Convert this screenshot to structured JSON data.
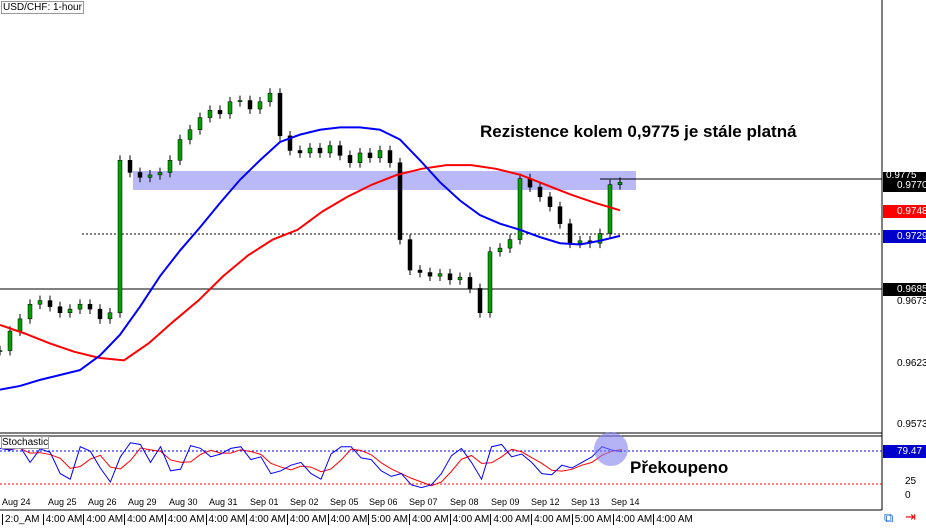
{
  "title": "USD/CHF: 1-hour",
  "annotation_resistance": "Rezistence kolem 0,9775 je stále platná",
  "annotation_overbought": "Překoupeno",
  "stoch_label": "Stochastic",
  "colors": {
    "ma_fast": "#0000ff",
    "ma_slow": "#ff0000",
    "zone": "#8080f0",
    "candle_up": "#00a000",
    "candle_down": "#000000"
  },
  "price_tags": [
    {
      "text": "0.9775",
      "bg": "#000000",
      "fg": "#ffffff"
    },
    {
      "text": "0.9770",
      "bg": "#000000",
      "fg": "#ffffff"
    },
    {
      "text": "0.9748",
      "bg": "#ff0000",
      "fg": "#ffffff"
    },
    {
      "text": "0.9729",
      "bg": "#0000cc",
      "fg": "#ffffff"
    },
    {
      "text": "0.9685",
      "bg": "#000000",
      "fg": "#ffffff"
    }
  ],
  "stoch_tag": "79.47",
  "stoch_levels": [
    "25",
    "0"
  ],
  "time_labels": [
    "2:0_AM",
    "4:00 AM",
    "4:00 AM",
    "4:00 AM",
    "4:00 AM",
    "4:00 AM",
    "4:00 AM",
    "4:00 AM",
    "4:00 AM",
    "5:00 AM",
    "4:00 AM",
    "4:00 AM",
    "4:00 AM",
    "4:00 AM",
    "5:00 AM",
    "4:00 AM",
    "4:00 AM"
  ],
  "chart_data": {
    "type": "candlestick",
    "title": "USD/CHF: 1-hour",
    "ylim": [
      0.9544,
      0.9921
    ],
    "yticks": [
      "0.9673",
      "0.9623",
      "0.9573"
    ],
    "categories": [
      "Aug 24",
      "Aug 25",
      "Aug 26",
      "Aug 29",
      "Aug 30",
      "Aug 31",
      "Sep 01",
      "Sep 02",
      "Sep 05",
      "Sep 06",
      "Sep 07",
      "Sep 08",
      "Sep 09",
      "Sep 12",
      "Sep 13",
      "Sep 14"
    ],
    "close": [
      0.9634,
      0.965,
      0.966,
      0.9672,
      0.9675,
      0.967,
      0.9665,
      0.9668,
      0.9672,
      0.9668,
      0.966,
      0.9665,
      0.979,
      0.978,
      0.9776,
      0.9778,
      0.978,
      0.979,
      0.9807,
      0.9815,
      0.9825,
      0.9831,
      0.9828,
      0.9838,
      0.9839,
      0.9832,
      0.9838,
      0.9845,
      0.981,
      0.9798,
      0.9796,
      0.98,
      0.9796,
      0.9802,
      0.9794,
      0.9788,
      0.9796,
      0.9792,
      0.9798,
      0.9788,
      0.9725,
      0.97,
      0.9698,
      0.9695,
      0.9697,
      0.9692,
      0.9694,
      0.9685,
      0.9665,
      0.9715,
      0.9718,
      0.9725,
      0.9775,
      0.9768,
      0.976,
      0.9752,
      0.9738,
      0.9722,
      0.9724,
      0.9722,
      0.973,
      0.977,
      0.9772
    ],
    "ma_fast": [
      0.9602,
      0.9605,
      0.961,
      0.9614,
      0.9618,
      0.963,
      0.9647,
      0.967,
      0.9695,
      0.9716,
      0.9735,
      0.9755,
      0.9774,
      0.979,
      0.9805,
      0.9811,
      0.9815,
      0.9817,
      0.9817,
      0.9815,
      0.9807,
      0.979,
      0.9772,
      0.9757,
      0.9745,
      0.9738,
      0.9733,
      0.9727,
      0.9722,
      0.9721,
      0.9724,
      0.9728
    ],
    "ma_slow": [
      0.9655,
      0.9648,
      0.964,
      0.9633,
      0.9628,
      0.9626,
      0.964,
      0.9658,
      0.9675,
      0.9695,
      0.9712,
      0.9725,
      0.9733,
      0.9748,
      0.976,
      0.977,
      0.9778,
      0.9783,
      0.9786,
      0.9786,
      0.9783,
      0.9778,
      0.977,
      0.9762,
      0.9755,
      0.9749
    ],
    "stoch_k": [
      85,
      82,
      88,
      60,
      84,
      78,
      40,
      30,
      88,
      80,
      50,
      25,
      70,
      95,
      92,
      60,
      88,
      45,
      48,
      90,
      85,
      70,
      75,
      85,
      88,
      65,
      70,
      40,
      45,
      55,
      60,
      40,
      30,
      75,
      88,
      88,
      68,
      65,
      45,
      35,
      40,
      20,
      15,
      20,
      40,
      72,
      85,
      60,
      30,
      88,
      92,
      70,
      75,
      60,
      40,
      38,
      55,
      50,
      60,
      70,
      88,
      82,
      79
    ]
  }
}
